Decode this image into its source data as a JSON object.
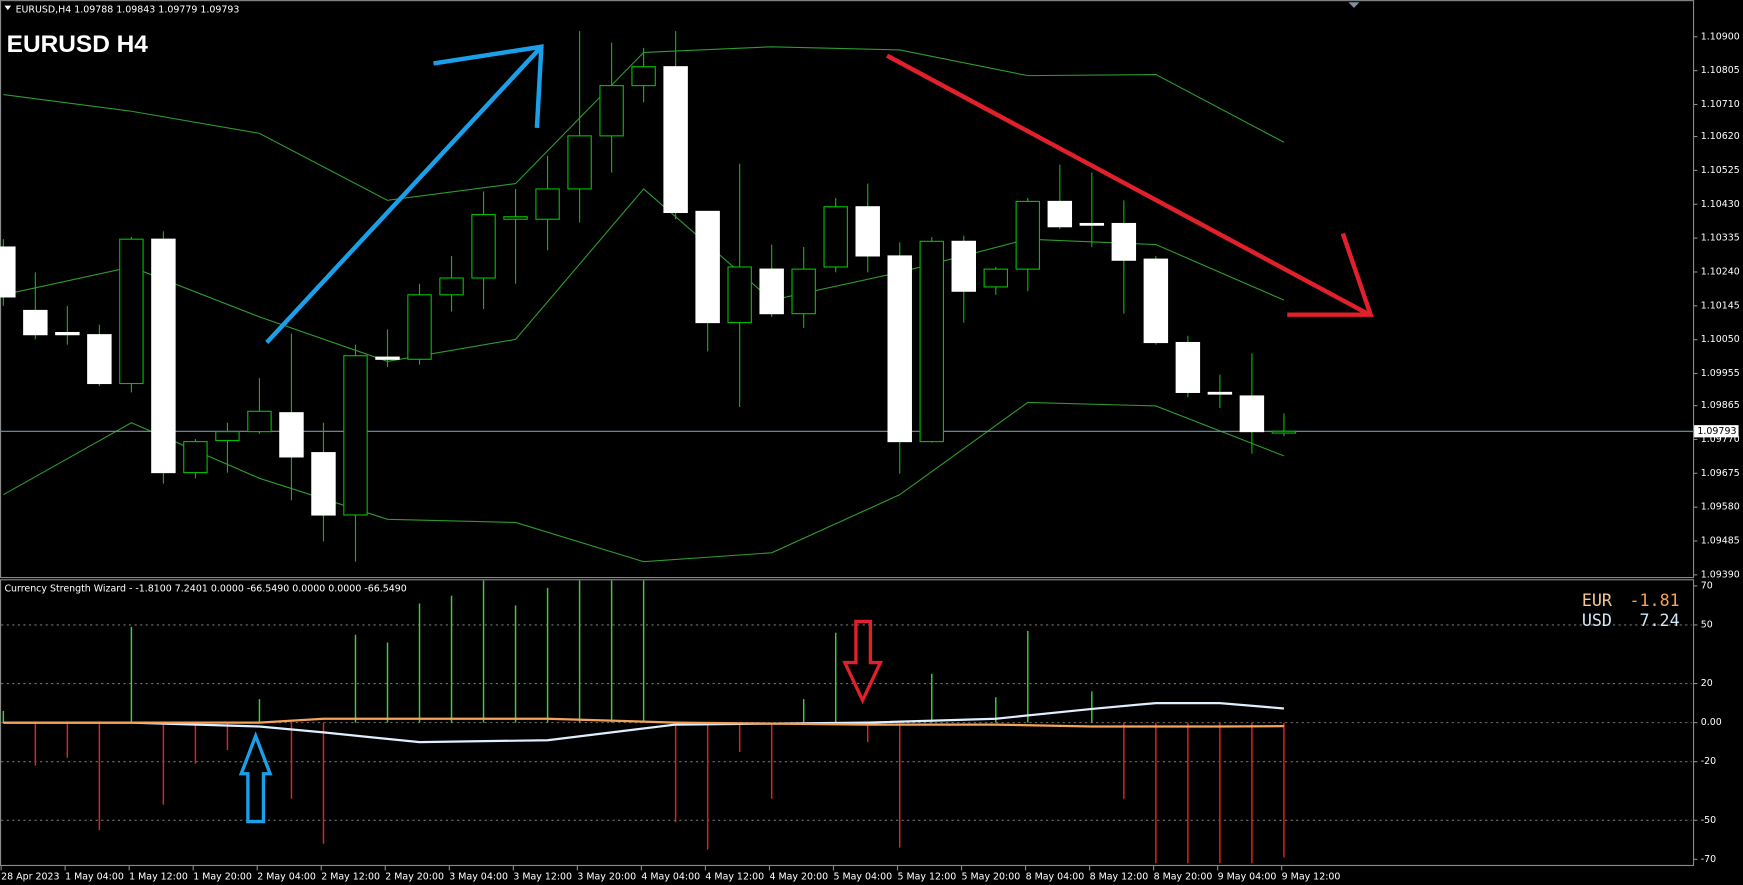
{
  "chart_data": [
    {
      "type": "candlestick",
      "header": "EURUSD,H4  1.09788 1.09843 1.09779 1.09793",
      "title": "EURUSD H4",
      "ylim": [
        1.09384,
        1.11003
      ],
      "yticks": [
        {
          "value": 1.109,
          "label": "1.10900"
        },
        1.10805,
        {
          "value": 1.1071,
          "label": "1.10710"
        },
        {
          "value": 1.1062,
          "label": "1.10620"
        },
        1.10525,
        {
          "value": 1.1043,
          "label": "1.10430"
        },
        1.10335,
        {
          "value": 1.1024,
          "label": "1.10240"
        },
        1.10145,
        {
          "value": 1.1005,
          "label": "1.10050"
        },
        1.09955,
        1.09865,
        {
          "value": 1.0977,
          "label": "1.09770"
        },
        1.09675,
        {
          "value": 1.0958,
          "label": "1.09580"
        },
        1.09485,
        {
          "value": 1.0939,
          "label": "1.09390"
        }
      ],
      "open": [
        1.1031,
        1.10132,
        1.1007,
        1.10064,
        1.09927,
        1.10332,
        1.09677,
        1.09767,
        1.09792,
        1.09845,
        1.09733,
        1.09558,
        1.10001,
        1.09995,
        1.10176,
        1.10223,
        1.10388,
        1.10388,
        1.10473,
        1.10622,
        1.10763,
        1.10816,
        1.1041,
        1.10098,
        1.10248,
        1.10123,
        1.10254,
        1.10423,
        1.10285,
        1.09764,
        1.10326,
        1.10198,
        1.10248,
        1.10438,
        1.10376,
        1.10376,
        1.10276,
        1.10042,
        1.09902,
        1.09892,
        1.09788
      ],
      "high": [
        1.10332,
        1.10239,
        1.10145,
        1.10092,
        1.10338,
        1.10354,
        1.09771,
        1.09817,
        1.09942,
        1.10067,
        1.09817,
        1.10036,
        1.10079,
        1.10207,
        1.10285,
        1.10466,
        1.10473,
        1.10566,
        1.10916,
        1.10884,
        1.10869,
        1.10916,
        1.1041,
        1.10544,
        1.10317,
        1.1031,
        1.10448,
        1.10488,
        1.10323,
        1.10338,
        1.10342,
        1.10254,
        1.10448,
        1.10541,
        1.10519,
        1.10441,
        1.10285,
        1.10061,
        1.09952,
        1.10011,
        1.09843
      ],
      "low": [
        1.10145,
        1.10051,
        1.10036,
        1.0992,
        1.09902,
        1.09646,
        1.09661,
        1.09677,
        1.09786,
        1.09599,
        1.09484,
        1.09427,
        1.09973,
        1.0998,
        1.10129,
        1.10136,
        1.10207,
        1.10301,
        1.10379,
        1.10519,
        1.10716,
        1.10388,
        1.10017,
        1.09861,
        1.10114,
        1.10083,
        1.10239,
        1.10239,
        1.09674,
        1.09761,
        1.10098,
        1.10176,
        1.10186,
        1.1036,
        1.1031,
        1.10123,
        1.10036,
        1.09889,
        1.09858,
        1.0973,
        1.09779
      ],
      "close": [
        1.1017,
        1.10064,
        1.10064,
        1.09927,
        1.10332,
        1.09677,
        1.09764,
        1.09792,
        1.09849,
        1.09721,
        1.09558,
        1.10005,
        1.09995,
        1.10176,
        1.10223,
        1.10401,
        1.10395,
        1.10473,
        1.10622,
        1.10763,
        1.10816,
        1.10407,
        1.10098,
        1.10254,
        1.10123,
        1.10248,
        1.10423,
        1.10285,
        1.09764,
        1.10326,
        1.10186,
        1.10248,
        1.10438,
        1.10367,
        1.10373,
        1.10273,
        1.10042,
        1.09902,
        1.09899,
        1.09792,
        1.09793
      ],
      "bull_color": "#00c000",
      "bear_color": "#ffffff",
      "bands": {
        "color": "#2f9a2f",
        "x": [
          0,
          4,
          8,
          12,
          16,
          20,
          24,
          28,
          32,
          36,
          40
        ],
        "upper": [
          1.10738,
          1.10691,
          1.10629,
          1.10441,
          1.10488,
          1.10856,
          1.10872,
          1.10863,
          1.10791,
          1.10794,
          1.10604
        ],
        "middle": [
          1.10176,
          1.10254,
          1.10114,
          1.09989,
          1.10051,
          1.10473,
          1.10161,
          1.10239,
          1.10332,
          1.10317,
          1.10161
        ],
        "lower": [
          1.09615,
          1.09817,
          1.09661,
          1.09546,
          1.09537,
          1.09427,
          1.09452,
          1.09615,
          1.09874,
          1.09864,
          1.09724
        ]
      },
      "current_price": 1.09793,
      "price_line_color": "#6f9aa6"
    },
    {
      "type": "bar",
      "title": "Currency Strength Wizard - -1.8100 7.2401 0.0000 -66.5490 0.0000 0.0000 -66.5490",
      "ylim": [
        -70,
        70
      ],
      "yticks": [
        70,
        50,
        20,
        {
          "value": 0,
          "label": "0.00"
        },
        -20,
        -50,
        -70
      ],
      "grid": true,
      "series": [
        {
          "name": "USD",
          "color": "#3ccf3c",
          "values": [
            6,
            null,
            null,
            null,
            49,
            null,
            null,
            null,
            12,
            null,
            null,
            45,
            41,
            61,
            65,
            75,
            60,
            69,
            75,
            75,
            75,
            null,
            null,
            null,
            null,
            12,
            46,
            null,
            null,
            25,
            null,
            13,
            47,
            null,
            16,
            null,
            null,
            null,
            null,
            null,
            null
          ]
        },
        {
          "name": "EUR",
          "color": "#e3231c",
          "values": [
            null,
            -22,
            -18,
            -55,
            null,
            -42,
            -21,
            -14,
            null,
            -39,
            -62,
            null,
            null,
            null,
            null,
            null,
            null,
            null,
            null,
            null,
            null,
            -51,
            -65,
            -15,
            -39,
            null,
            null,
            -10,
            -64,
            null,
            null,
            null,
            null,
            null,
            null,
            -39,
            -72,
            -72,
            -72,
            -72,
            -69
          ]
        }
      ],
      "line_x": [
        0,
        4,
        8,
        10,
        13,
        17,
        21,
        27,
        31,
        34,
        36,
        38,
        40
      ],
      "lines": [
        {
          "name": "USD",
          "color": "#dfefff",
          "values": [
            0,
            0,
            -2,
            -5,
            -10,
            -9,
            -1,
            0,
            2,
            7,
            10,
            10,
            7.24
          ]
        },
        {
          "name": "EUR",
          "color": "#f2a25a",
          "values": [
            0,
            0,
            0,
            2,
            2,
            2,
            0,
            -1,
            -1,
            -2,
            -2,
            -2,
            -1.81
          ]
        }
      ],
      "legend": [
        {
          "name": "EUR",
          "value": -1.81,
          "color": "#f5c88f",
          "value_color": "#f2a25a"
        },
        {
          "name": "USD",
          "value": 7.24,
          "color": "#cfe6f5",
          "value_color": "#cfe6f5"
        }
      ],
      "time_labels": [
        "28 Apr 2023",
        "1 May 04:00",
        "1 May 12:00",
        "1 May 20:00",
        "2 May 04:00",
        "2 May 12:00",
        "2 May 20:00",
        "3 May 04:00",
        "3 May 12:00",
        "3 May 20:00",
        "4 May 04:00",
        "4 May 12:00",
        "4 May 20:00",
        "5 May 04:00",
        "5 May 12:00",
        "5 May 20:00",
        "8 May 04:00",
        "8 May 12:00",
        "8 May 20:00",
        "9 May 04:00",
        "9 May 12:00"
      ]
    }
  ]
}
